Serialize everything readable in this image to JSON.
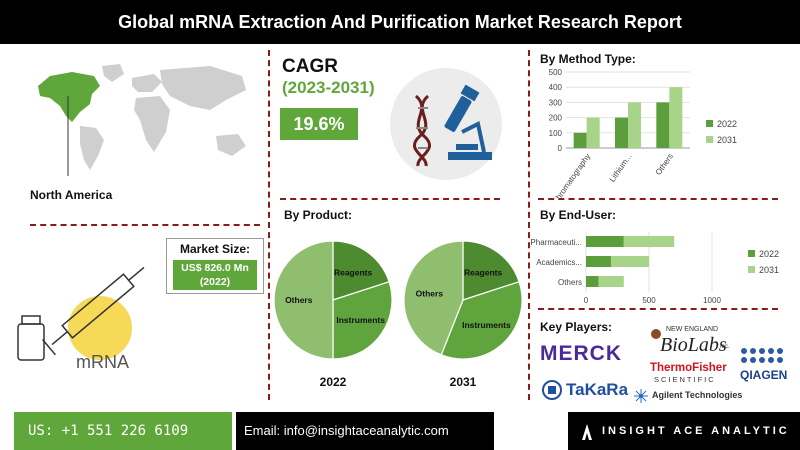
{
  "header": {
    "title": "Global mRNA Extraction And Purification Market  Research Report"
  },
  "region": {
    "label": "North America"
  },
  "cagr": {
    "title": "CAGR",
    "period": "(2023-2031)",
    "value": "19.6%"
  },
  "market_size": {
    "title": "Market Size:",
    "value_line1": "US$ 826.0 Mn",
    "value_line2": "(2022)"
  },
  "syringe_label": "mRNA",
  "sections": {
    "method": "By Method Type:",
    "product": "By Product:",
    "end_user": "By End-User:",
    "key_players": "Key Players:"
  },
  "key_players": [
    "MERCK",
    "New England BioLabs Inc.",
    "ThermoFisher SCIENTIFIC",
    "QIAGEN",
    "TaKaRa",
    "Agilent Technologies"
  ],
  "players_text": {
    "merck": "MERCK",
    "neb_small": "NEW ENGLAND",
    "neb_big": "BioLabs",
    "neb_inc": "Inc.",
    "thermo": "ThermoFisher",
    "scientific": "SCIENTIFIC",
    "qiagen": "QIAGEN",
    "takara": "TaKaRa",
    "agilent": "Agilent Technologies"
  },
  "colors": {
    "green_dark": "#5c9e3b",
    "green_light": "#a7d488",
    "pie_light": "#8fbf6e",
    "pie_mid": "#5fa43d",
    "pie_dark": "#4e8a30",
    "accent_red": "#8b1a1a"
  },
  "chart_data": [
    {
      "type": "bar",
      "orientation": "vertical",
      "categories": [
        "Chromatography",
        "Lithium...",
        "Others"
      ],
      "series": [
        {
          "name": "2022",
          "values": [
            100,
            200,
            300
          ]
        },
        {
          "name": "2031",
          "values": [
            200,
            300,
            400
          ]
        }
      ],
      "ylim": [
        0,
        500
      ],
      "yticks": [
        0,
        100,
        200,
        300,
        400,
        500
      ],
      "legend": "right"
    },
    {
      "type": "pie",
      "label": "2022",
      "slices": [
        {
          "name": "Reagents",
          "value": 20
        },
        {
          "name": "Instruments",
          "value": 30
        },
        {
          "name": "Others",
          "value": 50
        }
      ]
    },
    {
      "type": "pie",
      "label": "2031",
      "slices": [
        {
          "name": "Reagents",
          "value": 20
        },
        {
          "name": "Instruments",
          "value": 36
        },
        {
          "name": "Others",
          "value": 44
        }
      ]
    },
    {
      "type": "bar",
      "orientation": "horizontal",
      "stacked": true,
      "categories": [
        "Pharmaceuti...",
        "Academics...",
        "Others"
      ],
      "series": [
        {
          "name": "2022",
          "values": [
            300,
            200,
            100
          ]
        },
        {
          "name": "2031",
          "values": [
            400,
            300,
            200
          ]
        }
      ],
      "xlim": [
        0,
        1000
      ],
      "xticks": [
        0,
        500,
        1000
      ],
      "legend": "right"
    }
  ],
  "footer": {
    "phone": "US: +1 551 226 6109",
    "email": "Email: info@insightaceanalytic.com",
    "brand": "INSIGHT ACE ANALYTIC"
  }
}
